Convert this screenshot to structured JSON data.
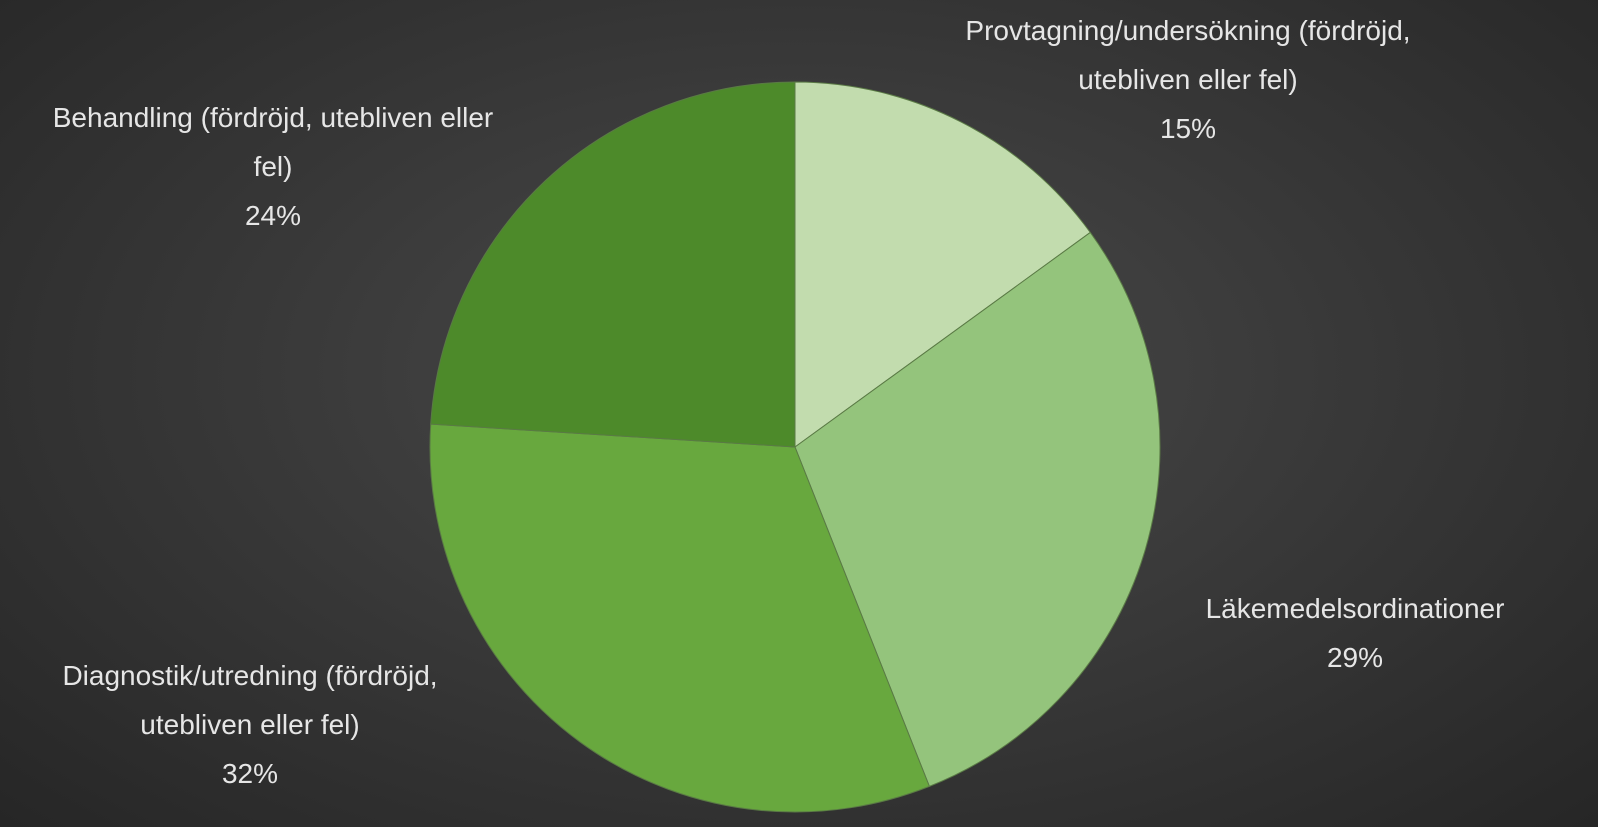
{
  "chart_data": {
    "type": "pie",
    "categories": [
      "Provtagning/undersökning (fördröjd, utebliven eller fel)",
      "Läkemedelsordinationer",
      "Diagnostik/utredning (fördröjd, utebliven eller fel)",
      "Behandling (fördröjd, utebliven eller fel)"
    ],
    "values": [
      15,
      29,
      32,
      24
    ],
    "value_labels": [
      "15%",
      "29%",
      "32%",
      "24%"
    ],
    "colors": [
      "#c2dcae",
      "#94c47c",
      "#68a83e",
      "#4d8a2a"
    ]
  }
}
